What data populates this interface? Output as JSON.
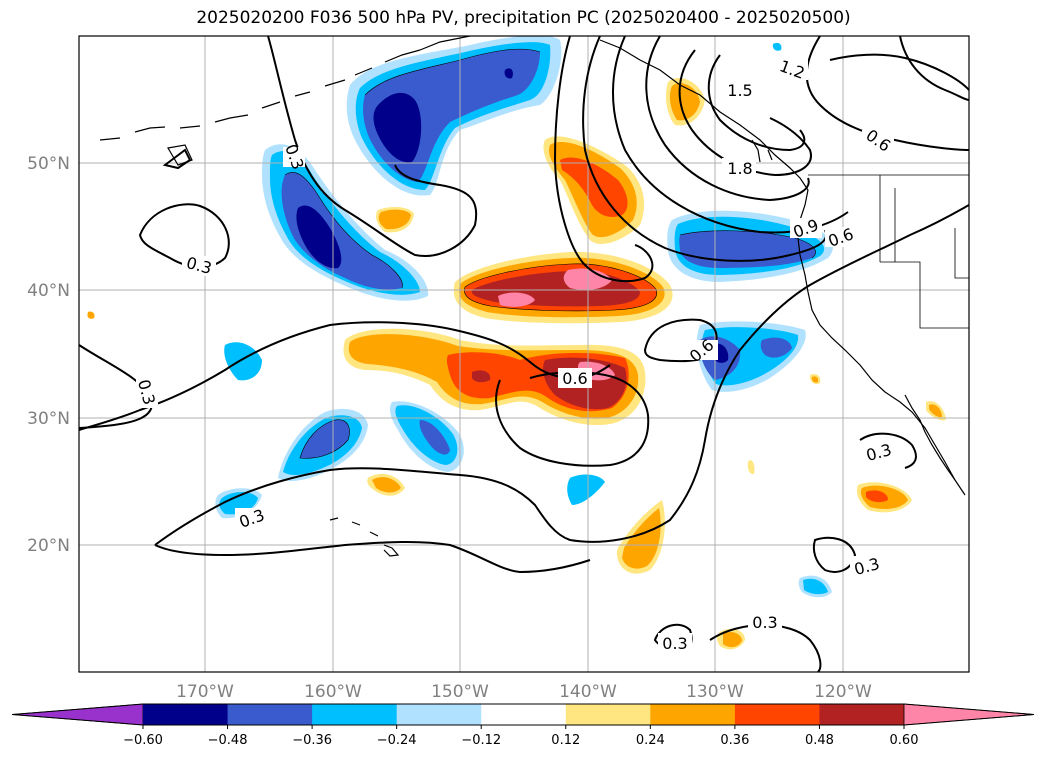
{
  "title": "2025020200 F036 500 hPa PV, precipitation PC (2025020400 - 2025020500)",
  "map": {
    "lat_labels": [
      "50°N",
      "40°N",
      "30°N",
      "20°N"
    ],
    "lon_labels": [
      "170°W",
      "160°W",
      "150°W",
      "140°W",
      "130°W",
      "120°W"
    ],
    "contour_labels": [
      "0.3",
      "0.3",
      "0.3",
      "0.3",
      "1.2",
      "1.5",
      "1.8",
      "0.6",
      "0.9",
      "0.6",
      "0.6",
      "0.6",
      "0.3",
      "0.3",
      "0.3",
      "0.3"
    ]
  },
  "colorbar": {
    "ticks": [
      "−0.60",
      "−0.48",
      "−0.36",
      "−0.24",
      "−0.12",
      "0.12",
      "0.24",
      "0.36",
      "0.48",
      "0.60"
    ],
    "colors": [
      "#9932cc",
      "#00008b",
      "#3a5bcd",
      "#00bfff",
      "#b0e2ff",
      "#ffffff",
      "#ffe680",
      "#ffa500",
      "#ff4500",
      "#b22222",
      "#ff85a8"
    ]
  },
  "colors": {
    "grid": "#b0b0b0",
    "coast": "#000000",
    "contour": "#000000"
  }
}
